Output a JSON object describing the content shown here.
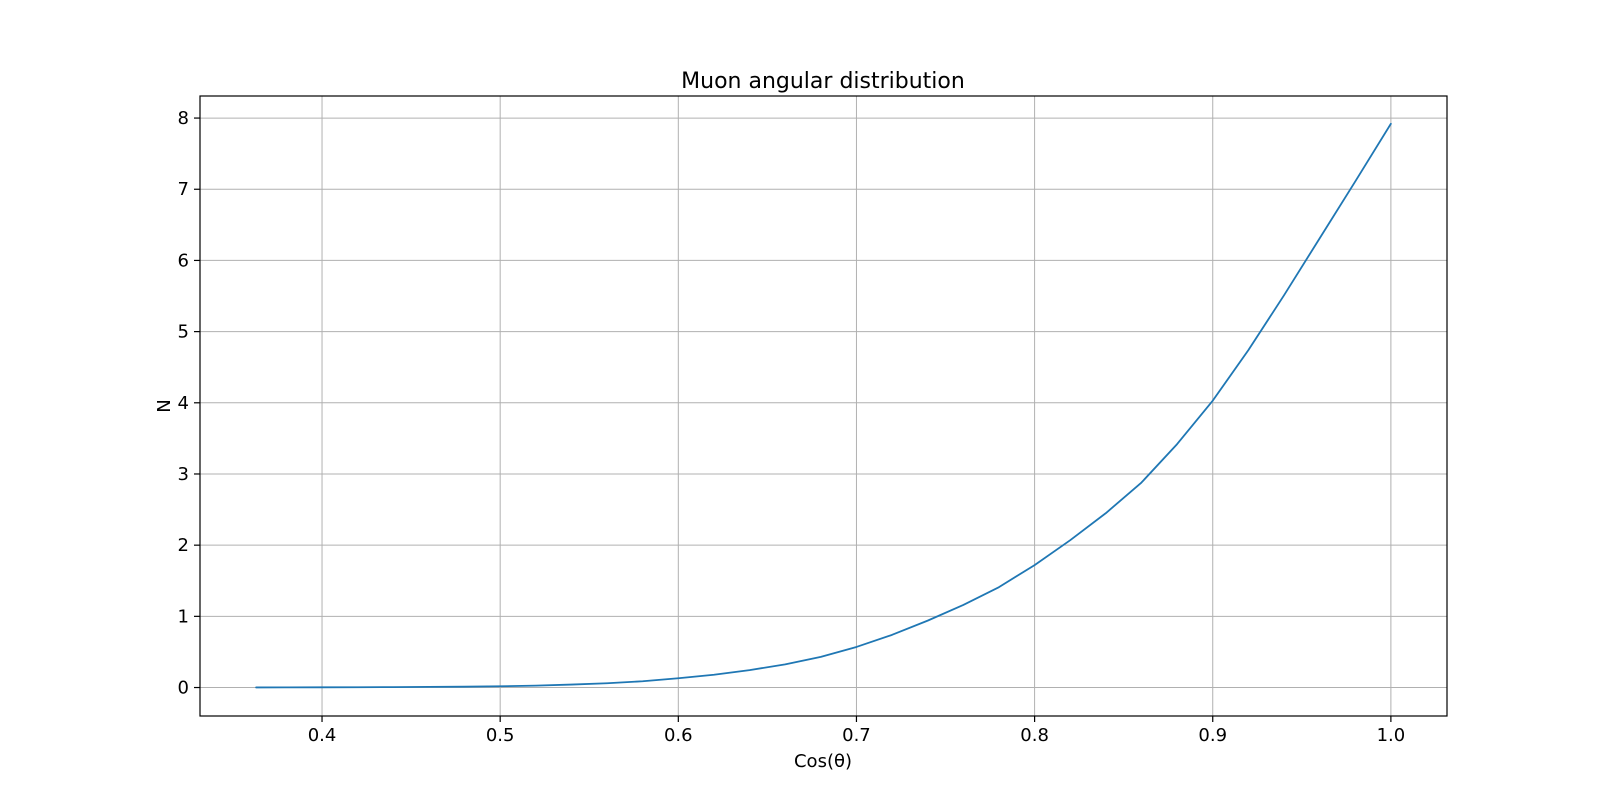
{
  "chart_data": {
    "type": "line",
    "title": "Muon angular distribution",
    "xlabel": "Cos(θ)",
    "ylabel": "N",
    "xlim": [
      0.3315,
      1.0315
    ],
    "ylim": [
      -0.4,
      8.31
    ],
    "xticks": [
      0.4,
      0.5,
      0.6,
      0.7,
      0.8,
      0.9,
      1.0
    ],
    "xtick_labels": [
      "0.4",
      "0.5",
      "0.6",
      "0.7",
      "0.8",
      "0.9",
      "1.0"
    ],
    "yticks": [
      0,
      1,
      2,
      3,
      4,
      5,
      6,
      7,
      8
    ],
    "ytick_labels": [
      "0",
      "1",
      "2",
      "3",
      "4",
      "5",
      "6",
      "7",
      "8"
    ],
    "grid": true,
    "line_color": "#1f77b4",
    "series": [
      {
        "x": [
          0.363,
          0.38,
          0.4,
          0.42,
          0.44,
          0.46,
          0.48,
          0.5,
          0.52,
          0.54,
          0.56,
          0.58,
          0.6,
          0.62,
          0.64,
          0.66,
          0.68,
          0.7,
          0.72,
          0.74,
          0.76,
          0.78,
          0.8,
          0.82,
          0.84,
          0.86,
          0.88,
          0.9,
          0.92,
          0.94,
          0.96,
          0.98,
          1.0
        ],
        "values": [
          0.001,
          0.002,
          0.003,
          0.004,
          0.006,
          0.009,
          0.012,
          0.018,
          0.027,
          0.042,
          0.06,
          0.088,
          0.13,
          0.18,
          0.245,
          0.325,
          0.43,
          0.57,
          0.74,
          0.94,
          1.16,
          1.41,
          1.72,
          2.07,
          2.45,
          2.88,
          3.42,
          4.03,
          4.74,
          5.51,
          6.31,
          7.11,
          7.92
        ]
      }
    ]
  }
}
